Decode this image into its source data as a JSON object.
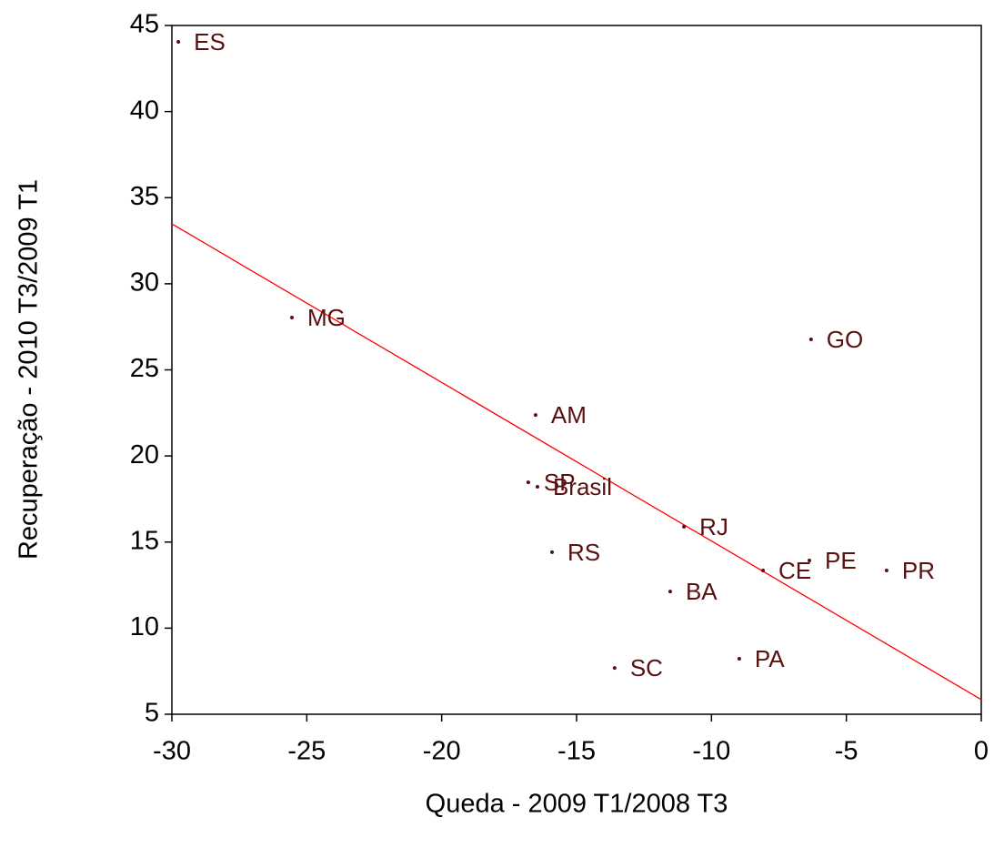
{
  "chart_data": {
    "type": "scatter",
    "x_label": "Queda - 2009 T1/2008 T3",
    "y_label": "Recuperação - 2010 T3/2009 T1",
    "labels": [
      "ES",
      "MG",
      "GO",
      "AM",
      "SP",
      "Brasil",
      "RJ",
      "RS",
      "PE",
      "CE",
      "PR",
      "BA",
      "PA",
      "SC"
    ],
    "x": [
      -29.76,
      -25.55,
      -6.31,
      -16.52,
      -16.79,
      -16.45,
      -11.02,
      -15.91,
      -6.37,
      -8.09,
      -3.51,
      -11.53,
      -8.97,
      -13.59
    ],
    "y": [
      44.05,
      28.04,
      26.77,
      22.38,
      18.47,
      18.21,
      15.89,
      14.41,
      13.93,
      13.35,
      13.35,
      12.13,
      8.22,
      7.69
    ],
    "color": "#5a1010",
    "trend_line": {
      "color": "#ff0000",
      "x": [
        -30,
        0
      ],
      "y": [
        33.48,
        5.85
      ]
    },
    "xlim": [
      -30,
      0
    ],
    "ylim": [
      5,
      45
    ],
    "xticks": [
      -30,
      -25,
      -20,
      -15,
      -10,
      -5,
      0
    ],
    "yticks": [
      5,
      10,
      15,
      20,
      25,
      30,
      35,
      40,
      45
    ]
  }
}
